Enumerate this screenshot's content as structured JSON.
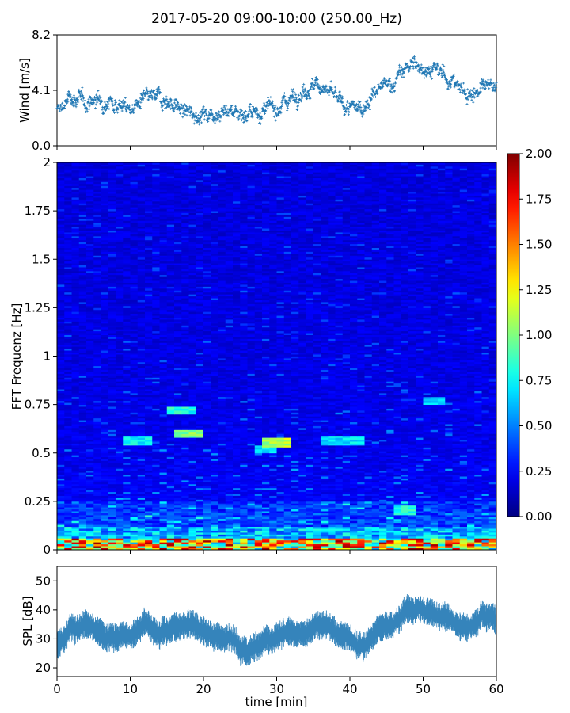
{
  "chart_data": {
    "title": "2017-05-20 09:00-10:00 (250.00_Hz)",
    "xlabel": "time [min]",
    "x_ticks": [
      "0",
      "10",
      "20",
      "30",
      "40",
      "50",
      "60"
    ],
    "xlim": [
      0,
      60
    ],
    "panels": [
      {
        "name": "wind",
        "type": "scatter",
        "ylabel": "Wind [m/s]",
        "ylim": [
          0,
          8.2
        ],
        "y_ticks": [
          "0.0",
          "4.1",
          "8.2"
        ],
        "color": "#1f77b4",
        "marker": "+",
        "trend": {
          "x": [
            0,
            2,
            4,
            6,
            8,
            10,
            12,
            14,
            16,
            18,
            20,
            22,
            24,
            26,
            28,
            30,
            32,
            34,
            36,
            38,
            40,
            42,
            44,
            46,
            48,
            50,
            52,
            54,
            56,
            58,
            60
          ],
          "y": [
            2.5,
            3.6,
            3.2,
            3.4,
            3.2,
            2.7,
            3.4,
            3.6,
            3.0,
            2.4,
            2.3,
            2.5,
            2.6,
            2.3,
            2.6,
            2.8,
            3.6,
            4.2,
            4.5,
            3.5,
            2.6,
            3.0,
            4.2,
            4.7,
            6.0,
            5.8,
            5.5,
            4.8,
            3.8,
            4.2,
            4.6
          ]
        },
        "spread": 0.9
      },
      {
        "name": "spectrogram",
        "type": "heatmap",
        "ylabel": "FFT Frequenz [Hz]",
        "ylim": [
          0,
          2
        ],
        "y_ticks": [
          "0",
          "0.25",
          "0.5",
          "0.75",
          "1",
          "1.25",
          "1.5",
          "1.75",
          "2"
        ],
        "colorbar": {
          "range": [
            0.0,
            2.0
          ],
          "ticks": [
            "0.00",
            "0.25",
            "0.50",
            "0.75",
            "1.00",
            "1.25",
            "1.50",
            "1.75",
            "2.00"
          ],
          "colormap": "jet"
        },
        "highlights": [
          {
            "t_start": 15.0,
            "t_end": 19.0,
            "freq": 0.72,
            "value": 0.8
          },
          {
            "t_start": 16.5,
            "t_end": 19.5,
            "freq": 0.6,
            "value": 1.0
          },
          {
            "t_start": 9.5,
            "t_end": 12.5,
            "freq": 0.57,
            "value": 0.75
          },
          {
            "t_start": 28.5,
            "t_end": 32.0,
            "freq": 0.55,
            "value": 1.1
          },
          {
            "t_start": 27.0,
            "t_end": 29.5,
            "freq": 0.52,
            "value": 0.7
          },
          {
            "t_start": 36.0,
            "t_end": 42.0,
            "freq": 0.57,
            "value": 0.7
          },
          {
            "t_start": 50.0,
            "t_end": 53.0,
            "freq": 0.77,
            "value": 0.65
          },
          {
            "t_start": 46.0,
            "t_end": 49.0,
            "freq": 0.2,
            "value": 0.8
          }
        ]
      },
      {
        "name": "spl",
        "type": "line",
        "ylabel": "SPL [dB]",
        "ylim": [
          17,
          55
        ],
        "y_ticks": [
          "20",
          "30",
          "40",
          "50"
        ],
        "color": "#1f77b4",
        "trend": {
          "x": [
            0,
            2,
            4,
            6,
            8,
            10,
            12,
            14,
            16,
            18,
            20,
            22,
            24,
            26,
            28,
            30,
            32,
            34,
            36,
            38,
            40,
            42,
            44,
            46,
            48,
            50,
            52,
            54,
            56,
            58,
            60
          ],
          "y": [
            27,
            34,
            35,
            31,
            30,
            31,
            35,
            31,
            35,
            36,
            33,
            30,
            30,
            25,
            29,
            31,
            32,
            33,
            36,
            32,
            30,
            27,
            34,
            35,
            41,
            40,
            38,
            36,
            33,
            38,
            37
          ]
        },
        "spread": 3.5
      }
    ]
  }
}
